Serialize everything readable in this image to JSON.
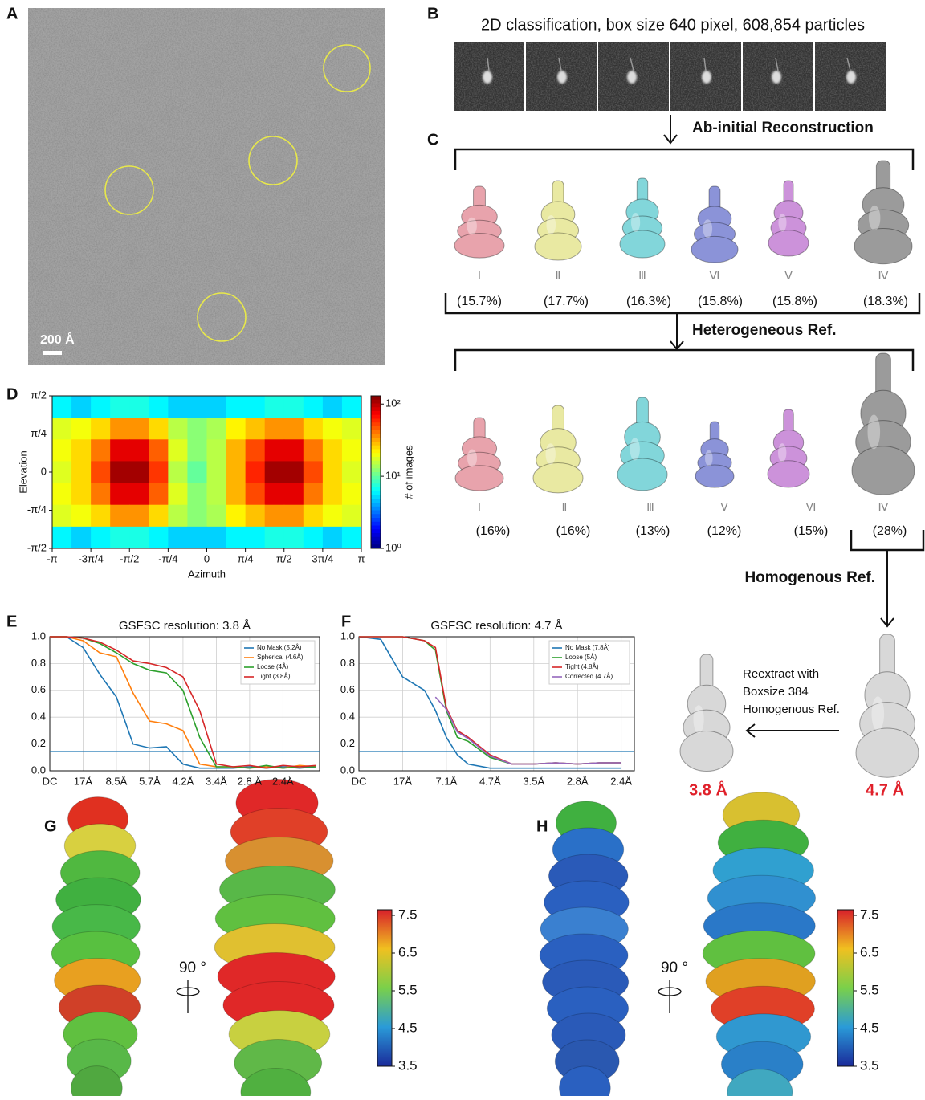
{
  "panel_labels": [
    "A",
    "B",
    "C",
    "D",
    "E",
    "F",
    "G",
    "H"
  ],
  "micrograph": {
    "scale_bar": "200 Å"
  },
  "classification_2d": {
    "title": "2D classification, box size 640 pixel,  608,854 particles"
  },
  "ab_initio": {
    "step": "Ab-initial Reconstruction",
    "classes": [
      {
        "label": "Ⅰ",
        "share": "(15.7%)"
      },
      {
        "label": "Ⅱ",
        "share": "(17.7%)"
      },
      {
        "label": "Ⅲ",
        "share": "(16.3%)"
      },
      {
        "label": "Ⅵ",
        "share": "(15.8%)"
      },
      {
        "label": "Ⅴ",
        "share": "(15.8%)"
      },
      {
        "label": "Ⅳ",
        "share": "(18.3%)"
      }
    ]
  },
  "heterogeneous": {
    "step": "Heterogeneous Ref.",
    "classes": [
      {
        "label": "Ⅰ",
        "share": "(16%)"
      },
      {
        "label": "Ⅱ",
        "share": "(16%)"
      },
      {
        "label": "Ⅲ",
        "share": "(13%)"
      },
      {
        "label": "Ⅴ",
        "share": "(12%)"
      },
      {
        "label": "Ⅵ",
        "share": "(15%)"
      },
      {
        "label": "Ⅳ",
        "share": "(28%)"
      }
    ]
  },
  "homogeneous": {
    "step": "Homogenous Ref.",
    "reextract": [
      "Reextract with",
      "Boxsize 384",
      "Homogenous Ref."
    ],
    "resolutions": [
      "3.8 Å",
      "4.7 Å"
    ]
  },
  "chart_data": [
    {
      "type": "heatmap",
      "x_label": "Azimuth",
      "y_label": "Elevation",
      "colorbar_label": "# of images",
      "xlim": [
        -3.1416,
        3.1416
      ],
      "xticks": [
        {
          "value": -3.1416,
          "label": "-π"
        },
        {
          "value": -2.3562,
          "label": "-3π/4"
        },
        {
          "value": -1.5708,
          "label": "-π/2"
        },
        {
          "value": -0.7854,
          "label": "-π/4"
        },
        0,
        {
          "value": 0.7854,
          "label": "π/4"
        },
        {
          "value": 1.5708,
          "label": "π/2"
        },
        {
          "value": 2.3562,
          "label": "3π/4"
        },
        {
          "value": 3.1416,
          "label": "π"
        }
      ],
      "ylim": [
        -1.5708,
        1.5708
      ],
      "yticks": [
        {
          "value": 1.5708,
          "label": "π/2"
        },
        {
          "value": 0.7854,
          "label": "π/4"
        },
        0,
        {
          "value": -0.7854,
          "label": "-π/4"
        },
        {
          "value": -1.5708,
          "label": "-π/2"
        }
      ],
      "clim": [
        1,
        130
      ],
      "color_log": true,
      "cticks": [
        {
          "value": 1,
          "label": "10⁰"
        },
        {
          "value": 10,
          "label": "10¹"
        },
        {
          "value": 100,
          "label": "10²"
        }
      ],
      "z": [
        [
          6,
          5,
          6,
          7,
          7,
          6,
          5,
          5,
          5,
          6,
          6,
          7,
          7,
          6,
          5,
          6
        ],
        [
          18,
          20,
          25,
          35,
          35,
          25,
          15,
          12,
          14,
          22,
          28,
          35,
          35,
          25,
          20,
          18
        ],
        [
          20,
          25,
          40,
          80,
          80,
          45,
          18,
          12,
          15,
          30,
          50,
          80,
          80,
          40,
          25,
          20
        ],
        [
          18,
          25,
          50,
          110,
          110,
          55,
          15,
          10,
          15,
          30,
          60,
          110,
          110,
          50,
          25,
          18
        ],
        [
          20,
          25,
          40,
          80,
          80,
          45,
          18,
          12,
          15,
          30,
          50,
          80,
          80,
          40,
          25,
          20
        ],
        [
          18,
          20,
          25,
          35,
          35,
          25,
          15,
          12,
          14,
          22,
          28,
          35,
          35,
          25,
          20,
          18
        ],
        [
          6,
          5,
          6,
          7,
          7,
          6,
          5,
          5,
          5,
          6,
          6,
          7,
          7,
          6,
          5,
          6
        ]
      ]
    },
    {
      "type": "line",
      "title": "GSFSC resolution: 3.8 Å",
      "x": [
        0,
        0.5,
        1,
        1.5,
        2,
        2.5,
        3,
        3.5,
        4,
        4.5,
        5,
        5.5,
        6,
        6.5,
        7,
        7.5,
        8
      ],
      "xlim": [
        0,
        8.1
      ],
      "xticks": [
        {
          "value": 0,
          "label": "DC"
        },
        {
          "value": 1,
          "label": "17Å"
        },
        {
          "value": 2,
          "label": "8.5Å"
        },
        {
          "value": 3,
          "label": "5.7Å"
        },
        {
          "value": 4,
          "label": "4.2Å"
        },
        {
          "value": 5,
          "label": "3.4Å"
        },
        {
          "value": 6,
          "label": "2.8 Å"
        },
        {
          "value": 7,
          "label": "2.4Å"
        }
      ],
      "ylim": [
        0,
        1
      ],
      "yticks": [
        {
          "value": 0,
          "label": "0.0"
        },
        0.2,
        0.4,
        0.6,
        0.8,
        {
          "value": 1,
          "label": "1.0"
        }
      ],
      "grid": true,
      "legend": "upper right",
      "hline": 0.143,
      "hline_color": "#1f77b4",
      "series": [
        {
          "name": "No Mask (5.2Å)",
          "color": "#1f77b4",
          "values": [
            1,
            1,
            0.92,
            0.72,
            0.55,
            0.2,
            0.17,
            0.18,
            0.05,
            0.02,
            0.02,
            0.02,
            0.03,
            0.02,
            0.03,
            0.02,
            0.03
          ]
        },
        {
          "name": "Spherical (4.6Å)",
          "color": "#ff7f0e",
          "values": [
            1,
            1,
            0.97,
            0.88,
            0.85,
            0.58,
            0.37,
            0.35,
            0.3,
            0.05,
            0.03,
            0.03,
            0.02,
            0.03,
            0.02,
            0.04,
            0.03
          ]
        },
        {
          "name": "Loose (4Å)",
          "color": "#2ca02c",
          "values": [
            1,
            1,
            0.99,
            0.95,
            0.88,
            0.8,
            0.75,
            0.73,
            0.6,
            0.25,
            0.03,
            0.03,
            0.02,
            0.04,
            0.02,
            0.03,
            0.03
          ]
        },
        {
          "name": "Tight (3.8Å)",
          "color": "#d62728",
          "values": [
            1,
            1,
            0.99,
            0.96,
            0.9,
            0.82,
            0.8,
            0.77,
            0.7,
            0.45,
            0.05,
            0.03,
            0.04,
            0.02,
            0.04,
            0.03,
            0.04
          ]
        }
      ]
    },
    {
      "type": "line",
      "title": "GSFSC resolution: 4.7 Å",
      "x": [
        0,
        0.5,
        1,
        1.5,
        1.75,
        2,
        2.25,
        2.5,
        3,
        3.5,
        4,
        4.5,
        5,
        5.5,
        6
      ],
      "xlim": [
        0,
        6.3
      ],
      "xticks": [
        {
          "value": 0,
          "label": "DC"
        },
        {
          "value": 1,
          "label": "17Å"
        },
        {
          "value": 2,
          "label": "7.1Å"
        },
        {
          "value": 3,
          "label": "4.7Å"
        },
        {
          "value": 4,
          "label": "3.5Å"
        },
        {
          "value": 5,
          "label": "2.8Å"
        },
        {
          "value": 6,
          "label": "2.4Å"
        }
      ],
      "ylim": [
        0,
        1
      ],
      "yticks": [
        {
          "value": 0,
          "label": "0.0"
        },
        0.2,
        0.4,
        0.6,
        0.8,
        {
          "value": 1,
          "label": "1.0"
        }
      ],
      "grid": true,
      "legend": "upper right",
      "hline": 0.143,
      "hline_color": "#1f77b4",
      "series": [
        {
          "name": "No Mask (7.8Å)",
          "color": "#1f77b4",
          "values": [
            1,
            0.98,
            0.7,
            0.6,
            0.45,
            0.25,
            0.12,
            0.05,
            0.02,
            0.02,
            0.02,
            0.02,
            0.02,
            0.02,
            0.02
          ]
        },
        {
          "name": "Loose (5Å)",
          "color": "#2ca02c",
          "values": [
            1,
            1,
            1,
            0.97,
            0.9,
            0.45,
            0.25,
            0.22,
            0.1,
            0.05,
            0.05,
            0.06,
            0.05,
            0.06,
            0.06
          ]
        },
        {
          "name": "Tight (4.8Å)",
          "color": "#d62728",
          "values": [
            1,
            1,
            1,
            0.97,
            0.92,
            0.47,
            0.3,
            0.25,
            0.12,
            0.05,
            0.05,
            0.06,
            0.05,
            0.06,
            0.06
          ]
        },
        {
          "name": "Corrected (4.7Å)",
          "color": "#9467bd",
          "values": [
            null,
            null,
            null,
            null,
            0.55,
            0.46,
            0.29,
            0.24,
            0.11,
            0.05,
            0.05,
            0.06,
            0.05,
            0.06,
            0.06
          ]
        }
      ]
    }
  ],
  "local_resolution": [
    {
      "rotation": "90 °",
      "colorbar_ticks": [
        "7.5",
        "6.5",
        "5.5",
        "4.5",
        "3.5"
      ]
    },
    {
      "rotation": "90 °",
      "colorbar_ticks": [
        "7.5",
        "6.5",
        "5.5",
        "4.5",
        "3.5"
      ]
    }
  ]
}
